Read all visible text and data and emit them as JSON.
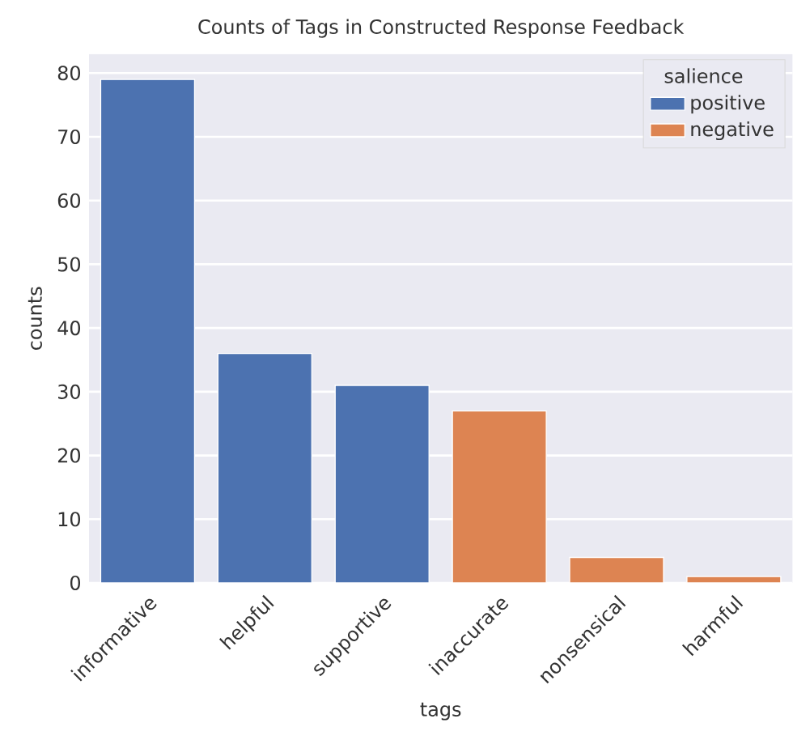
{
  "chart_data": {
    "type": "bar",
    "title": "Counts of Tags in Constructed Response Feedback",
    "xlabel": "tags",
    "ylabel": "counts",
    "legend_title": "salience",
    "categories": [
      "informative",
      "helpful",
      "supportive",
      "inaccurate",
      "nonsensical",
      "harmful"
    ],
    "series": [
      {
        "name": "positive",
        "color": "#4c72b0",
        "values": [
          79,
          36,
          31,
          null,
          null,
          null
        ]
      },
      {
        "name": "negative",
        "color": "#dd8452",
        "values": [
          null,
          null,
          null,
          27,
          4,
          1
        ]
      }
    ],
    "ylim": [
      0,
      83
    ],
    "yticks": [
      0,
      10,
      20,
      30,
      40,
      50,
      60,
      70,
      80
    ],
    "grid": "y",
    "legend": "top right"
  }
}
